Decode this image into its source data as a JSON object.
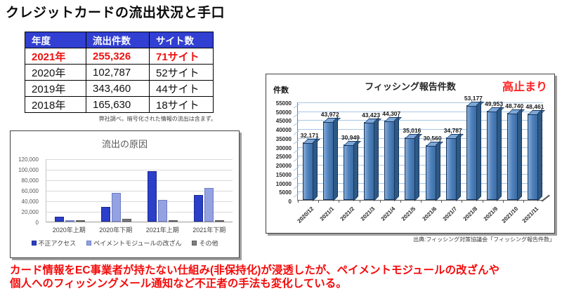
{
  "page": {
    "title": "クレジットカードの流出状況と手口"
  },
  "table": {
    "headers": [
      "年度",
      "流出件数",
      "サイト数"
    ],
    "rows": [
      [
        "2021年",
        "255,326",
        "71サイト"
      ],
      [
        "2020年",
        "102,787",
        "52サイト"
      ],
      [
        "2019年",
        "343,460",
        "44サイト"
      ],
      [
        "2018年",
        "165,630",
        "18サイト"
      ]
    ],
    "note": "弊社調べ。暗号化された情報の流出は含まず。"
  },
  "chart_data": [
    {
      "type": "bar",
      "title": "流出の原因",
      "categories": [
        "2020年上期",
        "2020年下期",
        "2021年上期",
        "2021年下期"
      ],
      "series": [
        {
          "name": "不正アクセス",
          "color": "#2b3fc8",
          "border": "#1a2a8f",
          "values": [
            9000,
            28000,
            96000,
            51000
          ]
        },
        {
          "name": "ペイメントモジュールの改ざん",
          "color": "#94a2e2",
          "border": "#6b7cc4",
          "values": [
            2000,
            55000,
            41000,
            64000
          ]
        },
        {
          "name": "その他",
          "color": "#7f7f7f",
          "border": "#595959",
          "values": [
            500,
            6000,
            2500,
            1500
          ]
        }
      ],
      "ylim": [
        0,
        120000
      ],
      "ytick_step": 20000,
      "grid": true,
      "legend_position": "bottom"
    },
    {
      "type": "bar",
      "title": "フィッシング報告件数",
      "ylabel": "件数",
      "annotation": "高止まり",
      "categories": [
        "2020/12",
        "2021/1",
        "2021/2",
        "2021/3",
        "2021/4",
        "2021/5",
        "2021/6",
        "2021/7",
        "2021/8",
        "2021/9",
        "2021/10",
        "2021/11"
      ],
      "values": [
        32171,
        43972,
        30949,
        43423,
        44307,
        35016,
        30560,
        34787,
        53177,
        49953,
        48740,
        48461
      ],
      "labels": [
        "32,171",
        "43,972",
        "30,949",
        "43,423",
        "44,307",
        "35,016",
        "30,560",
        "34,787",
        "53,177",
        "49,953",
        "48,740",
        "48,461"
      ],
      "ylim": [
        0,
        55000
      ],
      "ytick_step": 5000,
      "bar_color": "#4f81bd",
      "grid": true,
      "source": "出典:フィッシング対策協議会「フィッシング報告件数」"
    }
  ],
  "footer": {
    "line1": "カード情報をEC事業者が持たない仕組み(非保持化)が浸透したが、ペイメントモジュールの改ざんや",
    "line2": "個人へのフィッシングメール通知など不正者の手法も変化している。"
  },
  "colors": {
    "accent_red": "#ee1111",
    "table_header_bg": "#3140d2",
    "bar_steel": "#4f81bd",
    "series_dark_blue": "#2b3fc8",
    "series_light_blue": "#94a2e2",
    "series_gray": "#7f7f7f"
  }
}
